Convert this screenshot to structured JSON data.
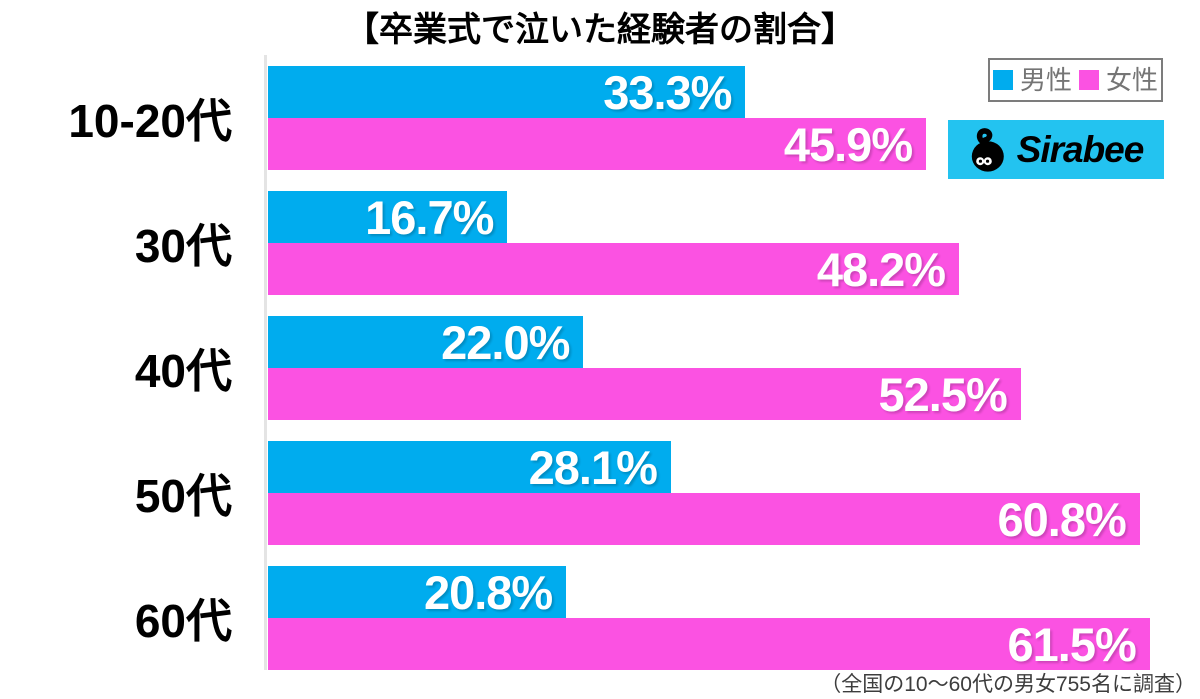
{
  "title": "【卒業式で泣いた経験者の割合】",
  "legend": {
    "male": "男性",
    "female": "女性"
  },
  "logo": {
    "text": "Sirabee"
  },
  "caption": "（全国の10〜60代の男女755名に調査）",
  "colors": {
    "male": "#00ACEE",
    "female": "#FB52E2",
    "logo_bg": "#23C3F0",
    "axis": "#E4E4E4",
    "legend_text": "#757575"
  },
  "chart_data": {
    "type": "bar",
    "orientation": "horizontal",
    "title": "【卒業式で泣いた経験者の割合】",
    "categories": [
      "10-20代",
      "30代",
      "40代",
      "50代",
      "60代"
    ],
    "series": [
      {
        "name": "男性",
        "color": "#00ACEE",
        "values": [
          33.3,
          16.7,
          22.0,
          28.1,
          20.8
        ]
      },
      {
        "name": "女性",
        "color": "#FB52E2",
        "values": [
          45.9,
          48.2,
          52.5,
          60.8,
          61.5
        ]
      }
    ],
    "value_suffix": "%",
    "value_decimals": 1,
    "xlim": [
      0,
      65
    ],
    "grid": false,
    "legend_position": "top-right",
    "value_labels": "inside-end"
  }
}
